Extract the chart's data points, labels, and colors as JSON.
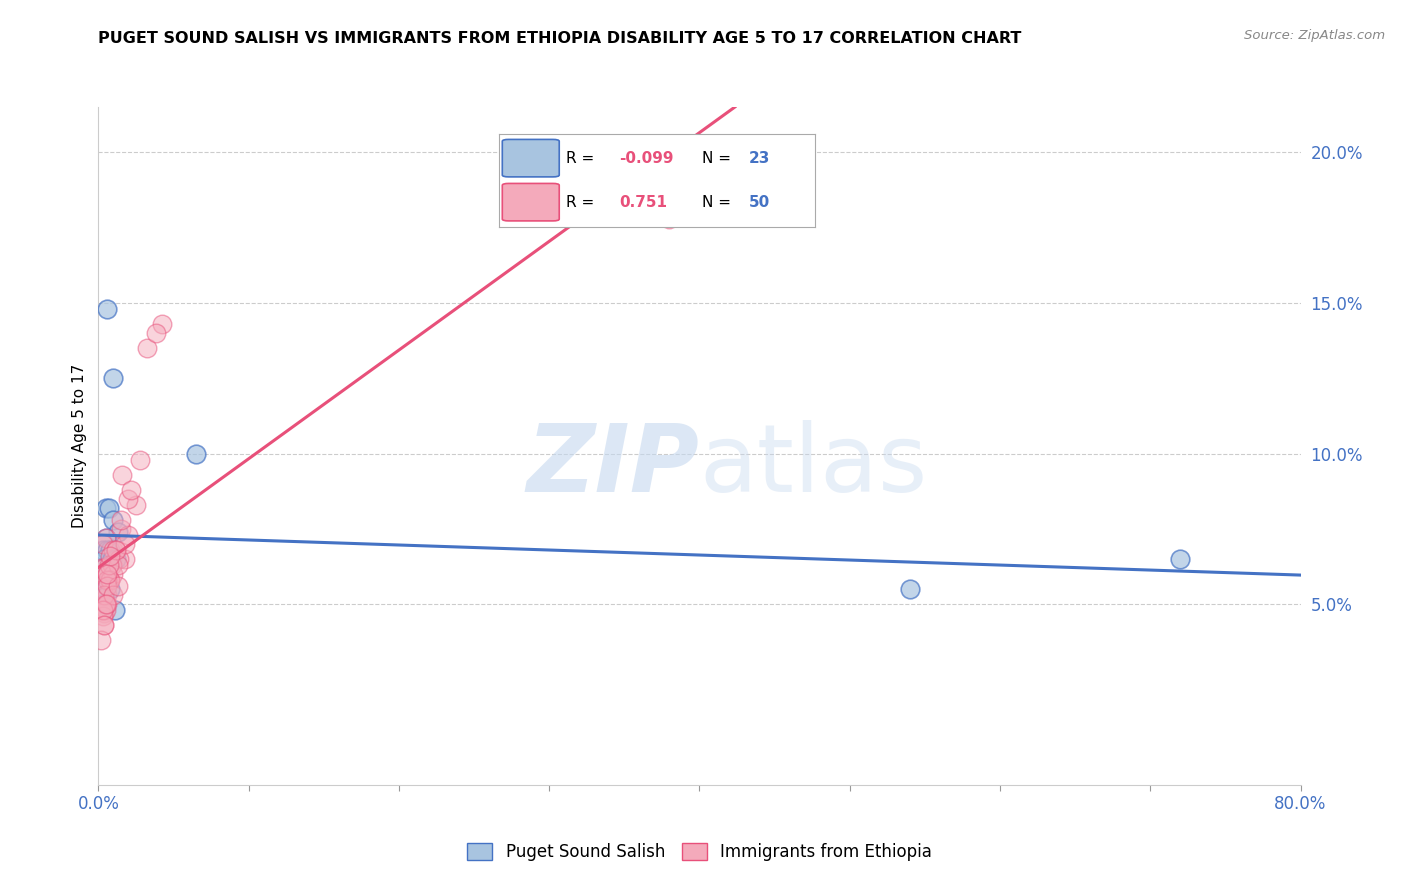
{
  "title": "PUGET SOUND SALISH VS IMMIGRANTS FROM ETHIOPIA DISABILITY AGE 5 TO 17 CORRELATION CHART",
  "source": "Source: ZipAtlas.com",
  "ylabel": "Disability Age 5 to 17",
  "xlim": [
    0.0,
    0.8
  ],
  "ylim": [
    -0.01,
    0.215
  ],
  "yticks_right": [
    0.05,
    0.1,
    0.15,
    0.2
  ],
  "yticks_right_labels": [
    "5.0%",
    "10.0%",
    "15.0%",
    "20.0%"
  ],
  "xticks": [
    0.0,
    0.1,
    0.2,
    0.3,
    0.4,
    0.5,
    0.6,
    0.7,
    0.8
  ],
  "xtick_labels": [
    "0.0%",
    "",
    "",
    "",
    "",
    "",
    "",
    "",
    "80.0%"
  ],
  "legend_label1": "Puget Sound Salish",
  "legend_label2": "Immigrants from Ethiopia",
  "R1": -0.099,
  "N1": 23,
  "R2": 0.751,
  "N2": 50,
  "color_blue": "#A8C4E0",
  "color_pink": "#F4AABB",
  "color_blue_line": "#4472C4",
  "color_pink_line": "#E8507A",
  "watermark_color": "#C5D8EF",
  "blue_x": [
    0.005,
    0.007,
    0.01,
    0.013,
    0.005,
    0.003,
    0.006,
    0.008,
    0.004,
    0.009,
    0.012,
    0.003,
    0.005,
    0.065,
    0.008,
    0.004,
    0.002,
    0.003,
    0.011,
    0.54,
    0.72,
    0.006,
    0.01
  ],
  "blue_y": [
    0.082,
    0.082,
    0.078,
    0.074,
    0.072,
    0.068,
    0.068,
    0.068,
    0.065,
    0.065,
    0.065,
    0.062,
    0.055,
    0.1,
    0.055,
    0.052,
    0.052,
    0.05,
    0.048,
    0.055,
    0.065,
    0.148,
    0.125
  ],
  "pink_x": [
    0.005,
    0.003,
    0.01,
    0.015,
    0.002,
    0.004,
    0.007,
    0.018,
    0.006,
    0.012,
    0.003,
    0.014,
    0.009,
    0.02,
    0.006,
    0.002,
    0.004,
    0.005,
    0.008,
    0.01,
    0.013,
    0.005,
    0.003,
    0.015,
    0.006,
    0.025,
    0.018,
    0.008,
    0.004,
    0.006,
    0.002,
    0.007,
    0.012,
    0.004,
    0.02,
    0.006,
    0.01,
    0.013,
    0.003,
    0.005,
    0.016,
    0.032,
    0.028,
    0.022,
    0.042,
    0.008,
    0.006,
    0.038,
    0.38,
    0.004
  ],
  "pink_y": [
    0.072,
    0.07,
    0.068,
    0.075,
    0.062,
    0.062,
    0.058,
    0.065,
    0.06,
    0.068,
    0.055,
    0.065,
    0.063,
    0.073,
    0.053,
    0.048,
    0.047,
    0.05,
    0.058,
    0.06,
    0.063,
    0.048,
    0.046,
    0.078,
    0.05,
    0.083,
    0.07,
    0.058,
    0.043,
    0.058,
    0.038,
    0.063,
    0.068,
    0.053,
    0.085,
    0.056,
    0.053,
    0.056,
    0.048,
    0.05,
    0.093,
    0.135,
    0.098,
    0.088,
    0.143,
    0.066,
    0.06,
    0.14,
    0.178,
    0.043
  ],
  "grid_color": "#CCCCCC",
  "background_color": "#FFFFFF",
  "blue_trend_x0": 0.0,
  "blue_trend_x1": 0.8,
  "pink_trend_x0": 0.0,
  "pink_trend_x1": 0.55
}
